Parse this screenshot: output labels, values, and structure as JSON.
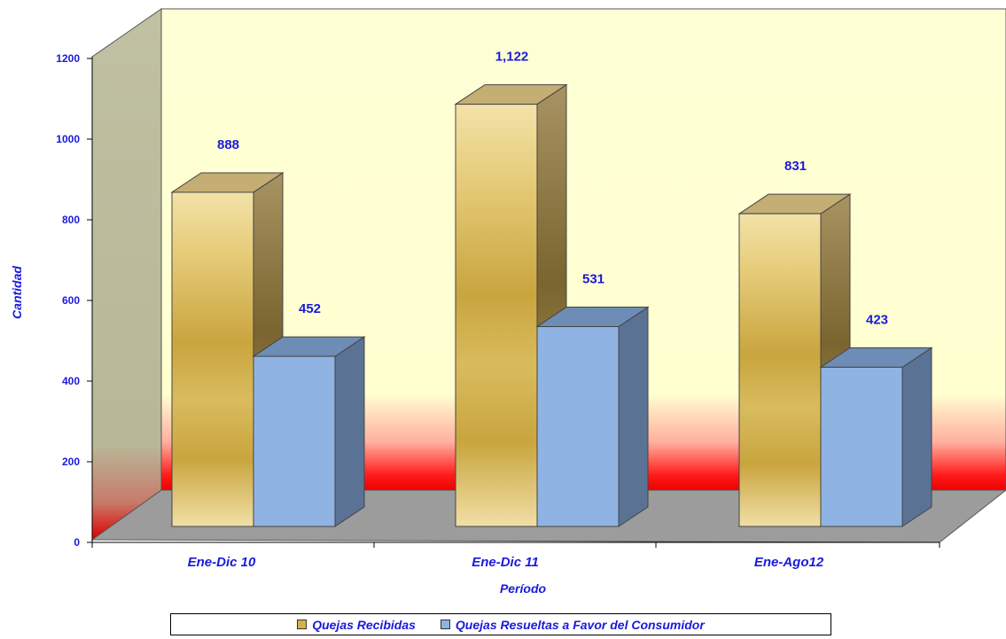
{
  "chart_data": {
    "type": "bar",
    "categories": [
      "Ene-Dic 10",
      "Ene-Dic 11",
      "Ene-Ago12"
    ],
    "series": [
      {
        "name": "Quejas Recibidas",
        "values": [
          888,
          1122,
          831
        ],
        "labels": [
          "888",
          "1,122",
          "831"
        ],
        "color": "#d4b24a"
      },
      {
        "name": "Quejas Resueltas a Favor del Consumidor",
        "values": [
          452,
          531,
          423
        ],
        "labels": [
          "452",
          "531",
          "423"
        ],
        "color": "#8fb4e3"
      }
    ],
    "xlabel": "Período",
    "ylabel": "Cantidad",
    "ylim": [
      0,
      1200
    ],
    "yticks": [
      "0",
      "200",
      "400",
      "600",
      "800",
      "1000",
      "1200"
    ],
    "legend_position": "bottom"
  }
}
